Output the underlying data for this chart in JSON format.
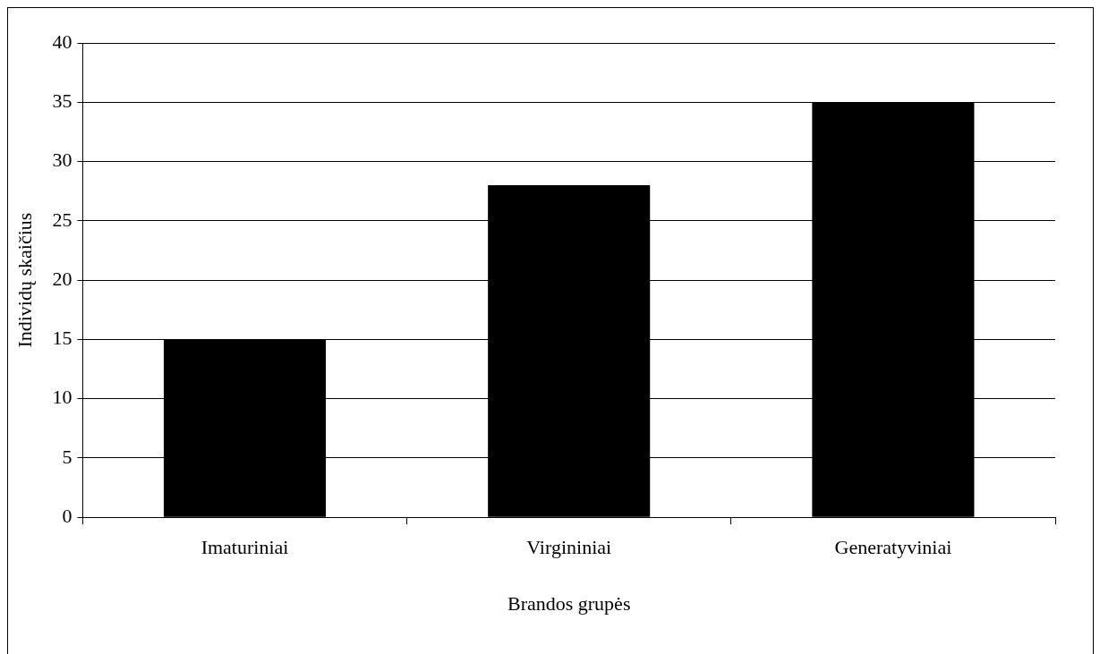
{
  "chart_data": {
    "type": "bar",
    "xlabel": "Brandos grupės",
    "ylabel": "Individų skaičius",
    "categories": [
      "Imaturiniai",
      "Virgininiai",
      "Generatyviniai"
    ],
    "values": [
      15,
      28,
      35
    ],
    "color": "#000000",
    "ylim": [
      0,
      40
    ],
    "yticks": [
      0,
      5,
      10,
      15,
      20,
      25,
      30,
      35,
      40
    ],
    "grid": "y",
    "legend": false
  }
}
